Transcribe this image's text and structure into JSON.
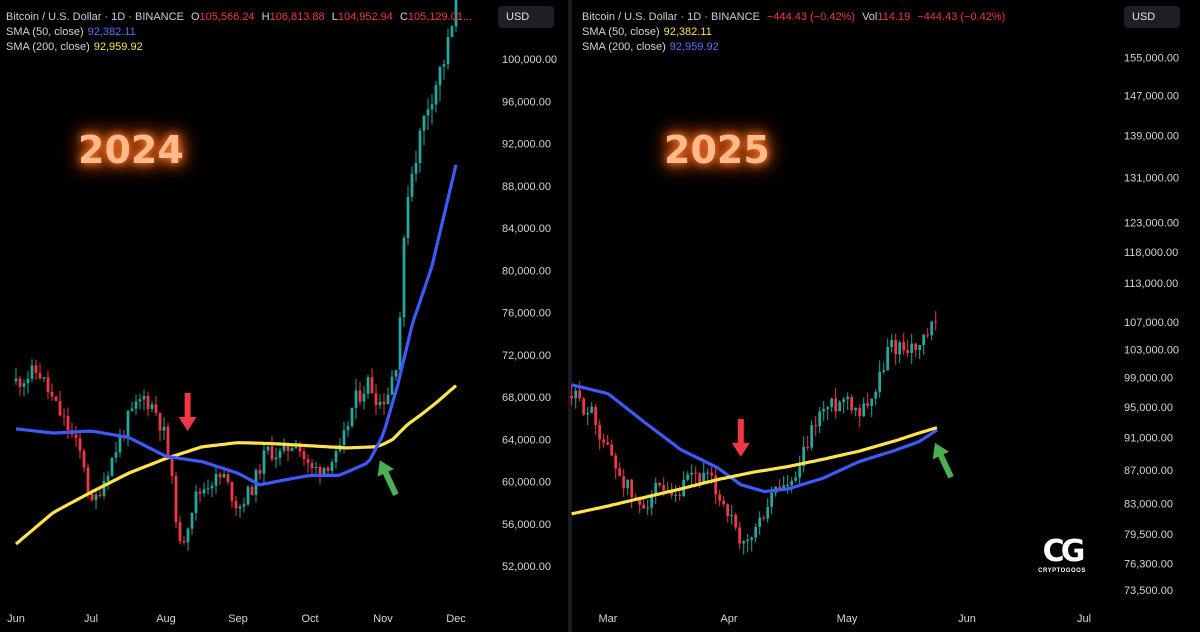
{
  "left_header": {
    "symbol": "Bitcoin / U.S. Dollar · 1D · BINANCE",
    "o_label": "O",
    "o_value": "105,566.24",
    "h_label": "H",
    "h_value": "106,813.88",
    "l_label": "L",
    "l_value": "104,952.94",
    "c_label": "C",
    "c_value": "105,129.01...",
    "sma50_label": "SMA (50, close)",
    "sma50_value": "92,382.11",
    "sma200_label": "SMA (200, close)",
    "sma200_value": "92,959.92"
  },
  "right_header": {
    "symbol": "Bitcoin / U.S. Dollar · 1D · BINANCE",
    "change": "−444.43 (−0.42%)",
    "vol_label": "Vol",
    "vol_value": "114.19",
    "vol_change": "−444.43 (−0.42%)",
    "sma50_label": "SMA (50, close)",
    "sma50_value": "92,382.11",
    "sma200_label": "SMA (200, close)",
    "sma200_value": "92,959.92"
  },
  "currency": "USD",
  "colors": {
    "up": "#26a69a",
    "down": "#f23645",
    "sma_blue": "#3d5afe",
    "sma_yellow": "#ffe34d",
    "arrow_red": "#f23645",
    "arrow_green": "#4caf50"
  },
  "logo": {
    "mark": "CG",
    "name": "CRYPTOGOOS"
  },
  "chart_data": [
    {
      "type": "line",
      "year_label": "2024",
      "x_tick_labels": [
        "Jun",
        "Jul",
        "Aug",
        "Sep",
        "Oct",
        "Nov",
        "Dec"
      ],
      "y_tick_labels": [
        "52,000.00",
        "56,000.00",
        "60,000.00",
        "64,000.00",
        "68,000.00",
        "72,000.00",
        "76,000.00",
        "80,000.00",
        "84,000.00",
        "88,000.00",
        "92,000.00",
        "96,000.00",
        "100,000.00"
      ],
      "y_ticks": [
        52000,
        56000,
        60000,
        64000,
        68000,
        72000,
        76000,
        80000,
        84000,
        88000,
        92000,
        96000,
        100000
      ],
      "ylim": [
        48800,
        105600
      ],
      "x_months": [
        0,
        1,
        2,
        3,
        4,
        5,
        6.5
      ],
      "price_x": [
        0,
        0.3,
        0.5,
        0.7,
        0.9,
        1.0,
        1.1,
        1.3,
        1.5,
        1.7,
        1.85,
        2.0,
        2.1,
        2.2,
        2.4,
        2.6,
        2.8,
        3.0,
        3.2,
        3.4,
        3.6,
        3.8,
        4.0,
        4.2,
        4.4,
        4.6,
        4.8,
        4.95,
        5.1,
        5.3,
        5.5,
        5.7,
        5.9,
        6.1,
        6.3,
        6.5
      ],
      "price_y": [
        69500,
        70500,
        67500,
        65000,
        62000,
        57500,
        59000,
        62500,
        66000,
        68000,
        67000,
        64000,
        59000,
        53500,
        58500,
        60000,
        60500,
        57500,
        59500,
        63000,
        62500,
        64000,
        61000,
        61500,
        62500,
        67500,
        69500,
        67500,
        68500,
        72000,
        87500,
        91500,
        95500,
        98000,
        100500,
        104800
      ],
      "sma50_x": [
        0,
        0.5,
        1.0,
        1.5,
        2.0,
        2.5,
        3.0,
        3.3,
        3.6,
        4.0,
        4.4,
        4.8,
        5.0,
        5.3,
        5.6,
        6.0,
        6.5
      ],
      "sma50_y": [
        65000,
        64600,
        64800,
        64200,
        62400,
        61900,
        60800,
        59700,
        60100,
        60600,
        60600,
        61800,
        64400,
        69100,
        74900,
        80300,
        90000
      ],
      "sma200_x": [
        0,
        0.5,
        1.0,
        1.5,
        2.0,
        2.5,
        3.0,
        3.5,
        4.0,
        4.5,
        4.9,
        5.2,
        5.5,
        5.8,
        6.1,
        6.5
      ],
      "sma200_y": [
        54100,
        57100,
        59000,
        60800,
        62200,
        63300,
        63700,
        63600,
        63400,
        63200,
        63300,
        64000,
        65400,
        66400,
        67500,
        69100
      ],
      "death_cross_arrow": {
        "x": 2.3,
        "y": 64800
      },
      "golden_cross_arrow": {
        "x": 5.1,
        "y": 60400
      }
    },
    {
      "type": "line",
      "year_label": "2025",
      "x_tick_labels": [
        "Mar",
        "Apr",
        "May",
        "Jun",
        "Jul"
      ],
      "y_tick_labels": [
        "73,500.00",
        "76,300.00",
        "79,500.00",
        "83,000.00",
        "87,000.00",
        "91,000.00",
        "95,000.00",
        "99,000.00",
        "103,000.00",
        "107,000.00",
        "113,000.00",
        "118,000.00",
        "123,000.00",
        "131,000.00",
        "139,000.00",
        "147,000.00",
        "155,000.00"
      ],
      "y_ticks": [
        73500,
        76300,
        79500,
        83000,
        87000,
        91000,
        95000,
        99000,
        103000,
        107000,
        113000,
        118000,
        123000,
        131000,
        139000,
        147000,
        155000
      ],
      "ylim": [
        72500,
        168000
      ],
      "log_scale": true,
      "x_months": [
        0,
        1,
        2,
        3,
        4
      ],
      "price_x": [
        -0.3,
        -0.15,
        0.0,
        0.1,
        0.25,
        0.4,
        0.55,
        0.7,
        0.85,
        1.0,
        1.1,
        1.25,
        1.4,
        1.55,
        1.75,
        1.85,
        2.0,
        2.1,
        2.25,
        2.35,
        2.5,
        2.6,
        2.75
      ],
      "price_y": [
        96500,
        94500,
        89500,
        86500,
        82500,
        84500,
        83000,
        86500,
        85500,
        82000,
        77500,
        80500,
        85000,
        85000,
        94000,
        95000,
        96500,
        94500,
        97500,
        103500,
        103500,
        103000,
        107000
      ],
      "sma50_x": [
        -0.3,
        0.0,
        0.3,
        0.6,
        0.9,
        1.2,
        1.5,
        1.8,
        2.1,
        2.4,
        2.6,
        2.75
      ],
      "sma50_y": [
        81800,
        82700,
        83700,
        84700,
        85800,
        86700,
        87400,
        88300,
        89300,
        90600,
        91600,
        92300
      ],
      "sma200_x": [
        -0.3,
        0.0,
        0.3,
        0.6,
        0.9,
        1.1,
        1.3,
        1.5,
        1.8,
        2.1,
        2.4,
        2.6,
        2.75
      ],
      "sma200_y": [
        98000,
        96800,
        93000,
        89500,
        87300,
        85200,
        84400,
        84700,
        86000,
        88000,
        89400,
        90500,
        92000
      ],
      "death_cross_arrow": {
        "x": 1.1,
        "y": 88600
      },
      "golden_cross_arrow": {
        "x": 2.8,
        "y": 88200
      }
    }
  ]
}
